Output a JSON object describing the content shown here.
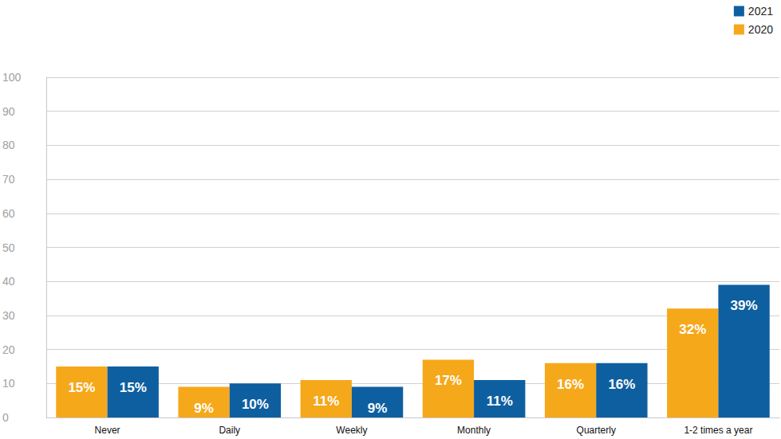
{
  "chart_data": {
    "type": "bar",
    "categories": [
      "Never",
      "Daily",
      "Weekly",
      "Monthly",
      "Quarterly",
      "1-2 times a year"
    ],
    "series": [
      {
        "name": "2020",
        "color": "#f6a81b",
        "values": [
          15,
          9,
          11,
          17,
          16,
          32
        ],
        "value_labels": [
          "15%",
          "9%",
          "11%",
          "17%",
          "16%",
          "32%"
        ]
      },
      {
        "name": "2021",
        "color": "#0e5fa0",
        "values": [
          15,
          10,
          9,
          11,
          16,
          39
        ],
        "value_labels": [
          "15%",
          "10%",
          "9%",
          "11%",
          "16%",
          "39%"
        ]
      }
    ],
    "ylim": [
      0,
      100
    ],
    "yticks": [
      0,
      10,
      20,
      30,
      40,
      50,
      60,
      70,
      80,
      90,
      100
    ],
    "grid": true,
    "legend": "top-right",
    "data_labels": true
  }
}
